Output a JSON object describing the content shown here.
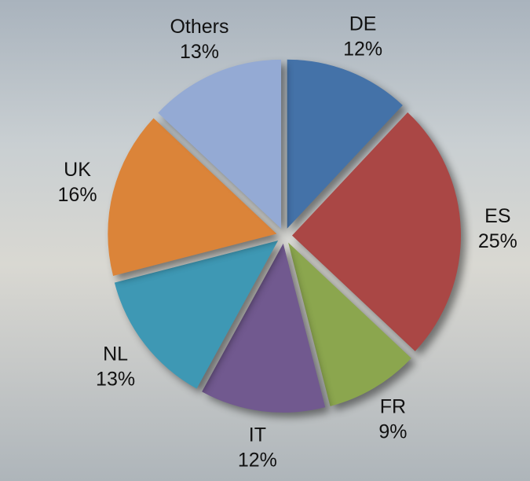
{
  "chart_data": {
    "type": "pie",
    "categories": [
      "DE",
      "ES",
      "FR",
      "IT",
      "NL",
      "UK",
      "Others"
    ],
    "values": [
      12,
      25,
      9,
      12,
      13,
      16,
      13
    ],
    "value_labels": [
      "12%",
      "25%",
      "9%",
      "12%",
      "13%",
      "16%",
      "13%"
    ],
    "colors": [
      "#4472a8",
      "#aa4745",
      "#8ba64e",
      "#71598f",
      "#3e98b4",
      "#db8439",
      "#94aad4"
    ]
  }
}
